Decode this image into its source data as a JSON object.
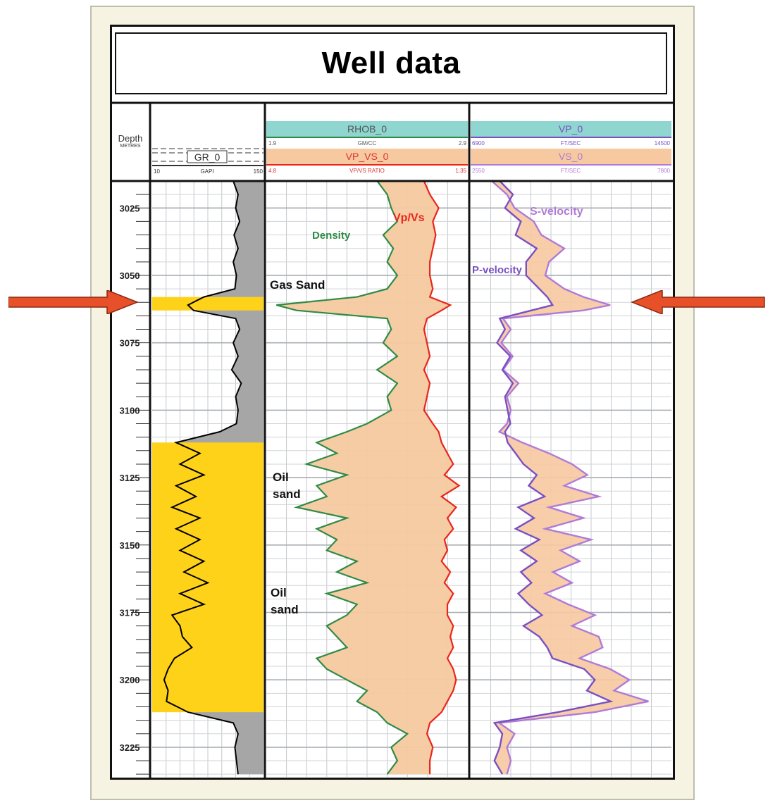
{
  "title": "Well data",
  "depth_header": {
    "label": "Depth",
    "units": "METRES"
  },
  "tracks": [
    {
      "curve": "GR_0",
      "unit": "GAPI",
      "min": "10",
      "max": "150"
    },
    {
      "curve": "RHOB_0",
      "unit": "GM/CC",
      "min": "1.9",
      "max": "2.9"
    },
    {
      "curve": "VP_VS_0",
      "unit": "VP/VS RATIO",
      "min": "4.8",
      "max": "1.35"
    },
    {
      "curve": "VP_0",
      "unit": "FT/SEC",
      "min": "6900",
      "max": "14500"
    },
    {
      "curve": "VS_0",
      "unit": "FT/SEC",
      "min": "2550",
      "max": "7800"
    }
  ],
  "depth_ticks": [
    "3025",
    "3050",
    "3075",
    "3100",
    "3125",
    "3150",
    "3175",
    "3200",
    "3225"
  ],
  "annotations": {
    "gas_sand": "Gas Sand",
    "oil_sand_1": [
      "Oil",
      "sand"
    ],
    "oil_sand_2": [
      "Oil",
      "sand"
    ],
    "density": "Density",
    "vpvs": "Vp/Vs",
    "s_velocity": "S-velocity",
    "p_velocity": "P-velocity"
  },
  "colors": {
    "gr_curve": "#000000",
    "shale_fill": "#a6a6a6",
    "sand_fill": "#ffd21a",
    "density": "#2e8b45",
    "vpvs": "#e8261c",
    "fill_between": "#f6c9a0",
    "vp": "#7a4fc4",
    "vs": "#b07ad8",
    "header_density": "#8fd6d0",
    "header_vpvs": "#f6c9a0",
    "arrow": "#e8502a"
  },
  "chart_data": {
    "type": "line",
    "ylim": [
      3015,
      3236
    ],
    "depth": [
      3015,
      3020,
      3025,
      3030,
      3035,
      3040,
      3045,
      3050,
      3055,
      3058,
      3061,
      3063,
      3066,
      3070,
      3075,
      3080,
      3085,
      3090,
      3095,
      3100,
      3105,
      3108,
      3112,
      3116,
      3120,
      3124,
      3128,
      3132,
      3136,
      3140,
      3144,
      3148,
      3152,
      3156,
      3160,
      3164,
      3168,
      3172,
      3176,
      3180,
      3184,
      3188,
      3192,
      3196,
      3200,
      3204,
      3208,
      3212,
      3216,
      3220,
      3225,
      3230,
      3235
    ],
    "series": [
      {
        "key": "GR_0",
        "xlim": [
          10,
          150
        ],
        "values": [
          112,
          118,
          115,
          120,
          113,
          118,
          112,
          116,
          114,
          75,
          55,
          62,
          115,
          120,
          112,
          118,
          110,
          122,
          115,
          118,
          116,
          95,
          40,
          70,
          45,
          75,
          40,
          65,
          35,
          70,
          40,
          70,
          45,
          75,
          50,
          80,
          45,
          75,
          35,
          45,
          48,
          60,
          38,
          30,
          25,
          30,
          28,
          55,
          112,
          118,
          114,
          116,
          118
        ]
      },
      {
        "key": "RHOB_0",
        "xlim": [
          1.9,
          2.9
        ],
        "values": [
          2.45,
          2.5,
          2.52,
          2.55,
          2.48,
          2.53,
          2.5,
          2.55,
          2.5,
          2.35,
          1.95,
          2.05,
          2.5,
          2.52,
          2.48,
          2.55,
          2.45,
          2.55,
          2.5,
          2.52,
          2.4,
          2.3,
          2.15,
          2.25,
          2.1,
          2.3,
          2.15,
          2.2,
          2.05,
          2.3,
          2.15,
          2.25,
          2.2,
          2.35,
          2.25,
          2.4,
          2.2,
          2.35,
          2.3,
          2.2,
          2.25,
          2.3,
          2.15,
          2.2,
          2.3,
          2.4,
          2.35,
          2.45,
          2.5,
          2.6,
          2.52,
          2.55,
          2.5
        ]
      },
      {
        "key": "VP_VS_0",
        "xlim": [
          4.8,
          1.35
        ],
        "values": [
          2.1,
          2.0,
          1.85,
          1.95,
          1.9,
          1.95,
          2.0,
          2.0,
          1.95,
          2.0,
          1.65,
          1.8,
          2.05,
          2.1,
          2.05,
          2.0,
          2.1,
          2.0,
          2.05,
          2.1,
          1.95,
          1.85,
          1.8,
          1.7,
          1.6,
          1.75,
          1.5,
          1.8,
          1.55,
          1.7,
          1.6,
          1.75,
          1.7,
          1.8,
          1.65,
          1.75,
          1.6,
          1.7,
          1.7,
          1.6,
          1.65,
          1.6,
          1.7,
          1.6,
          1.55,
          1.6,
          1.7,
          1.8,
          2.0,
          2.05,
          1.95,
          2.0,
          2.0
        ]
      },
      {
        "key": "VP_0",
        "xlim": [
          6900,
          14500
        ],
        "values": [
          8000,
          8500,
          8200,
          8800,
          8600,
          9400,
          9000,
          9000,
          9500,
          9800,
          10000,
          9200,
          8000,
          8200,
          7900,
          8400,
          8100,
          8500,
          8200,
          8300,
          8400,
          8200,
          8300,
          8600,
          8900,
          9400,
          9100,
          9700,
          8700,
          9300,
          8600,
          9500,
          8800,
          9400,
          8800,
          9200,
          8700,
          9100,
          9600,
          8900,
          9500,
          9800,
          10000,
          11200,
          11600,
          11300,
          12200,
          10200,
          7800,
          8100,
          8000,
          7800,
          8100
        ]
      },
      {
        "key": "VS_0",
        "xlim": [
          2550,
          7800
        ],
        "values": [
          3100,
          3500,
          3700,
          4200,
          4400,
          5000,
          4600,
          4500,
          5000,
          5500,
          6200,
          5500,
          3400,
          3600,
          3350,
          3650,
          3400,
          3800,
          3500,
          3600,
          3500,
          3300,
          3900,
          4600,
          5200,
          5600,
          5000,
          5900,
          4600,
          5500,
          4500,
          5700,
          4900,
          5400,
          4700,
          5200,
          4500,
          5100,
          5800,
          5200,
          5900,
          6000,
          5400,
          6200,
          6700,
          6300,
          7200,
          5800,
          3300,
          3700,
          3500,
          3600,
          3500
        ]
      }
    ]
  }
}
